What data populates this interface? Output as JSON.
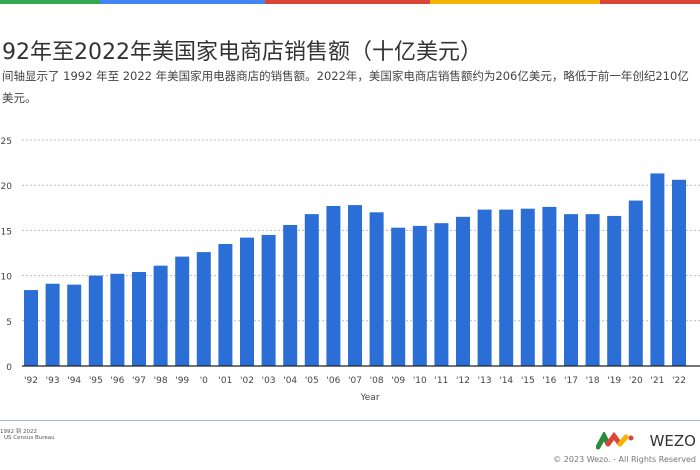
{
  "header": {
    "title": "92年至2022年美国家电商店销售额（十亿美元）",
    "description": "间轴显示了 1992 年至 2022 年美国家用电器商店的销售额。2022年，美国家电商店销售额约为206亿美元，略低于前一年创纪210亿美元。"
  },
  "colors": {
    "bar": "#2b6fd6",
    "stripe": [
      "#34a853",
      "#4285f4",
      "#db4437",
      "#f4b400",
      "#db4437"
    ]
  },
  "chart_data": {
    "type": "bar",
    "title": "",
    "xlabel": "Year",
    "ylabel": "",
    "ylim": [
      0,
      25
    ],
    "yticks": [
      0,
      5,
      10,
      15,
      20,
      25
    ],
    "grid": true,
    "categories": [
      "'92",
      "'93",
      "'94",
      "'95",
      "'96",
      "'97",
      "'98",
      "'99",
      "'0",
      "'01",
      "'02",
      "'03",
      "'04",
      "'05",
      "'06",
      "'07",
      "'08",
      "'09",
      "'10",
      "'11",
      "'12",
      "'13",
      "'14",
      "'15",
      "'16",
      "'17",
      "'18",
      "'19",
      "'20",
      "'21",
      "'22"
    ],
    "values": [
      8.4,
      9.1,
      9.0,
      10.0,
      10.2,
      10.4,
      11.1,
      12.1,
      12.6,
      13.5,
      14.2,
      14.5,
      15.6,
      16.8,
      17.7,
      17.8,
      17.0,
      15.3,
      15.5,
      15.8,
      16.5,
      17.3,
      17.3,
      17.4,
      17.6,
      16.8,
      16.8,
      16.6,
      18.3,
      21.3,
      20.6
    ]
  },
  "footer": {
    "source_line1": "1992 到 2022",
    "source_line2": "US Census Bureau",
    "brand": "WEZO",
    "copyright": "© 2023 Wezo. - All Rights Reserved"
  }
}
